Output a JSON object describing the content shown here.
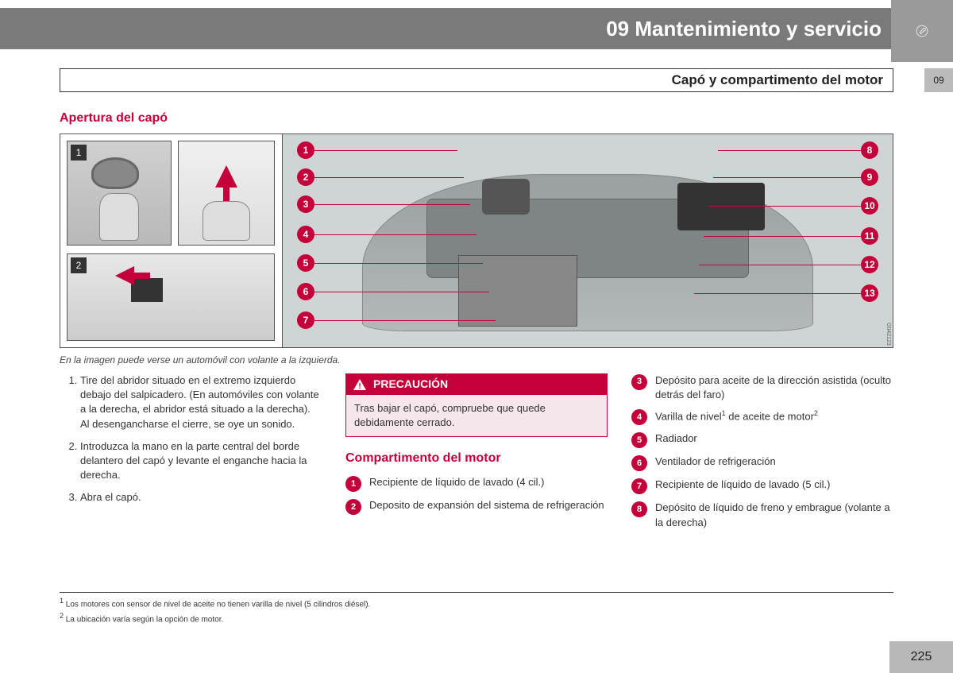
{
  "header": {
    "chapter_title": "09 Mantenimiento y servicio"
  },
  "subheader": {
    "title": "Capó y compartimento del motor",
    "page_tab": "09"
  },
  "section1": {
    "heading": "Apertura del capó"
  },
  "figure": {
    "step1": "1",
    "step2": "2",
    "caption": "En la imagen puede verse un automóvil con volante a la izquierda.",
    "image_id": "G042123",
    "left_labels": [
      "1",
      "2",
      "3",
      "4",
      "5",
      "6",
      "7"
    ],
    "right_labels": [
      "8",
      "9",
      "10",
      "11",
      "12",
      "13"
    ],
    "left_y": [
      20,
      54,
      88,
      126,
      162,
      198,
      234
    ],
    "right_y": [
      20,
      54,
      90,
      128,
      164,
      200
    ],
    "callout_color": "#c4003a"
  },
  "steps": {
    "s1": "Tire del abridor situado en el extremo izquierdo debajo del salpicadero. (En automóviles con volante a la derecha, el abridor está situado a la derecha). Al desengancharse el cierre, se oye un sonido.",
    "s2": "Introduzca la mano en la parte central del borde delantero del capó y levante el enganche hacia la derecha.",
    "s3": "Abra el capó."
  },
  "caution": {
    "label": "PRECAUCIÓN",
    "body": "Tras bajar el capó, compruebe que quede debidamente cerrado."
  },
  "section2": {
    "heading": "Compartimento del motor"
  },
  "components": {
    "c1": "Recipiente de líquido de lavado (4 cil.)",
    "c2": "Deposito de expansión del sistema de refrigeración",
    "c3": "Depósito para aceite de la dirección asistida (oculto detrás del faro)",
    "c4_a": "Varilla de nivel",
    "c4_b": " de aceite de motor",
    "c5": "Radiador",
    "c6": "Ventilador de refrigeración",
    "c7": "Recipiente de líquido de lavado (5 cil.)",
    "c8": "Depósito de líquido de freno y embrague (volante a la derecha)"
  },
  "footnotes": {
    "f1": "Los motores con sensor de nivel de aceite no tienen varilla de nivel (5 cilindros diésel).",
    "f2": "La ubicación varía según la opción de motor."
  },
  "page_number": "225",
  "colors": {
    "accent": "#c4003a",
    "header_bg": "#7a7a7a",
    "tab_bg": "#9a9a9a"
  }
}
